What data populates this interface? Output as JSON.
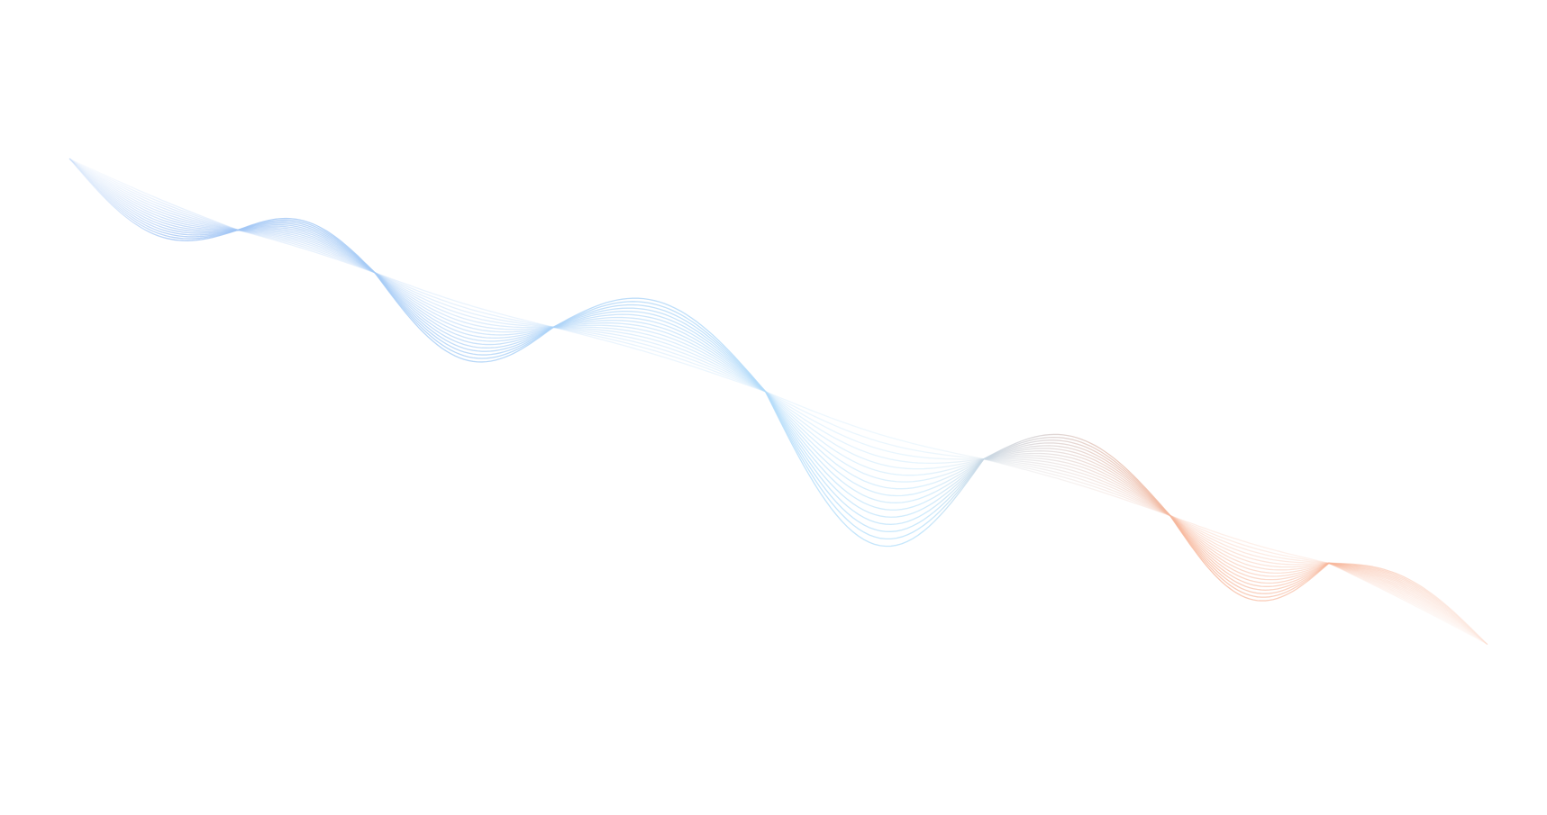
{
  "artwork": {
    "description_type": "decorative-wave-lines",
    "colors": {
      "background": "#ffffff",
      "start": "#9fc3f4",
      "middle": "#b9e2fb",
      "end": "#f7b69a"
    },
    "line_count": 16
  }
}
